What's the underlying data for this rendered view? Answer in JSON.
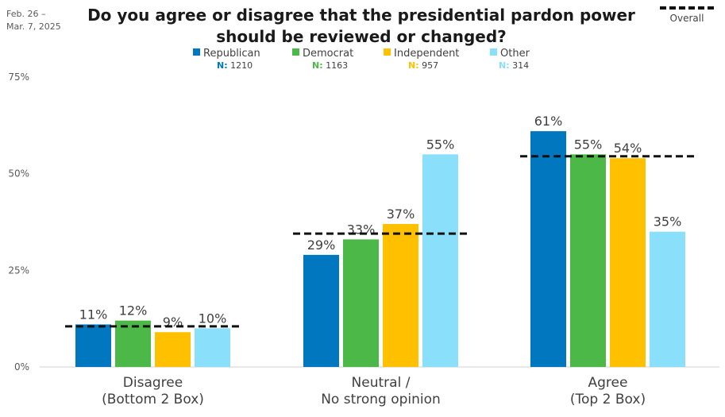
{
  "header": {
    "date": "Feb. 26 –\nMar. 7, 2025",
    "title": "Do you agree or disagree that the presidential pardon power should be reviewed or changed?",
    "overall_label": "Overall"
  },
  "legend": [
    {
      "name": "Republican",
      "n_label": "N:",
      "n_value": "1210",
      "color": "#0077BE"
    },
    {
      "name": "Democrat",
      "n_label": "N:",
      "n_value": "1163",
      "color": "#4CB848"
    },
    {
      "name": "Independent",
      "n_label": "N:",
      "n_value": "957",
      "color": "#FFC000"
    },
    {
      "name": "Other",
      "n_label": "N:",
      "n_value": "314",
      "color": "#8ADFFB"
    }
  ],
  "chart_data": {
    "type": "bar",
    "categories": [
      "Disagree\n(Bottom 2 Box)",
      "Neutral /\nNo strong opinion",
      "Agree\n(Top 2 Box)"
    ],
    "series": [
      {
        "name": "Republican",
        "values": [
          11,
          29,
          61
        ],
        "labels": [
          "11%",
          "29%",
          "61%"
        ]
      },
      {
        "name": "Democrat",
        "values": [
          12,
          33,
          55
        ],
        "labels": [
          "12%",
          "33%",
          "55%"
        ]
      },
      {
        "name": "Independent",
        "values": [
          9,
          37,
          54
        ],
        "labels": [
          "9%",
          "37%",
          "54%"
        ]
      },
      {
        "name": "Other",
        "values": [
          10,
          55,
          35
        ],
        "labels": [
          "10%",
          "55%",
          "35%"
        ]
      }
    ],
    "overall": [
      10.5,
      34.5,
      54.5
    ],
    "ylim": [
      0,
      75
    ],
    "yticks": [
      "0%",
      "25%",
      "50%",
      "75%"
    ],
    "ytick_values": [
      0,
      25,
      50,
      75
    ]
  }
}
